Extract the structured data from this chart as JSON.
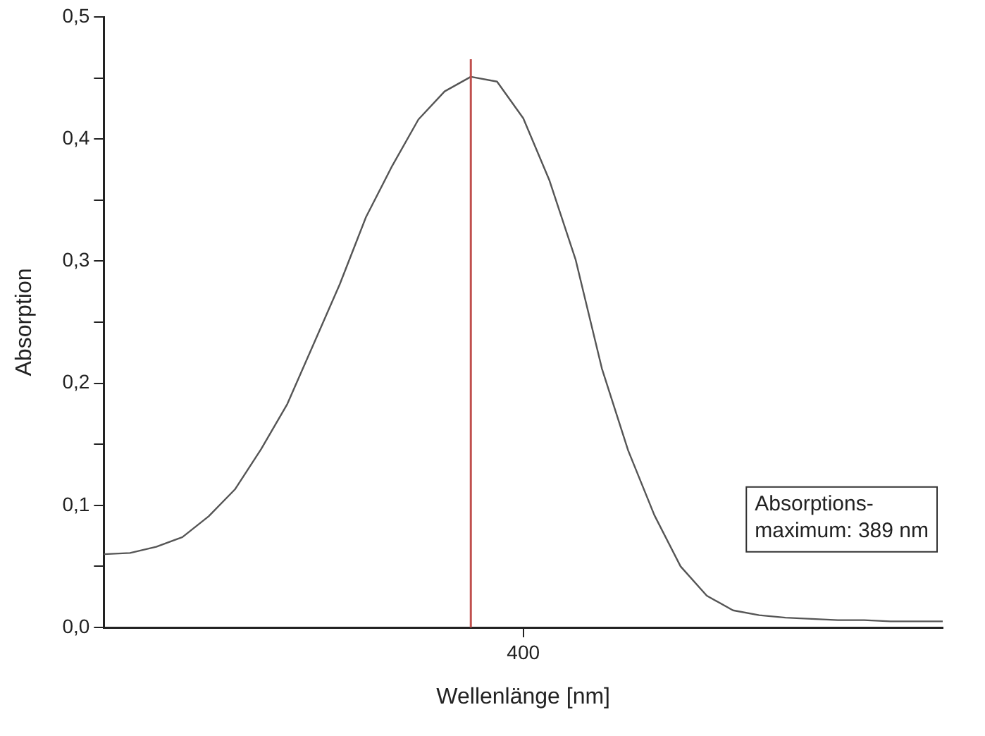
{
  "chart_data": {
    "type": "line",
    "xlabel": "Wellenlänge [nm]",
    "ylabel": "Absorption",
    "categories": [
      null,
      null,
      null,
      null,
      null,
      null,
      null,
      null,
      null,
      null,
      null,
      null,
      null,
      null,
      null,
      null,
      "400",
      null,
      null,
      null,
      null,
      null,
      null,
      null,
      null,
      null,
      null,
      null,
      null,
      null,
      null,
      null,
      null
    ],
    "values": [
      0.06,
      0.061,
      0.066,
      0.074,
      0.091,
      0.113,
      0.146,
      0.183,
      0.232,
      0.281,
      0.336,
      0.378,
      0.416,
      0.439,
      0.451,
      0.447,
      0.417,
      0.366,
      0.301,
      0.212,
      0.145,
      0.092,
      0.05,
      0.026,
      0.014,
      0.01,
      0.008,
      0.007,
      0.006,
      0.006,
      0.005,
      0.005,
      0.005
    ],
    "color": "#555555",
    "ylim": [
      0,
      0.5
    ],
    "yticks": [
      {
        "value": 0,
        "label": "0,0"
      },
      {
        "value": 0.05,
        "label": null
      },
      {
        "value": 0.1,
        "label": "0,1"
      },
      {
        "value": 0.15,
        "label": null
      },
      {
        "value": 0.2,
        "label": "0,2"
      },
      {
        "value": 0.25,
        "label": null
      },
      {
        "value": 0.3,
        "label": "0,3"
      },
      {
        "value": 0.35,
        "label": null
      },
      {
        "value": 0.4,
        "label": "0,4"
      },
      {
        "value": 0.45,
        "label": null
      },
      {
        "value": 0.5,
        "label": "0,5"
      }
    ],
    "ref_lines": [
      {
        "axis": "x",
        "label": "Absorptions-\nmaximum: 389 nm",
        "color": "#c0504d"
      }
    ]
  }
}
